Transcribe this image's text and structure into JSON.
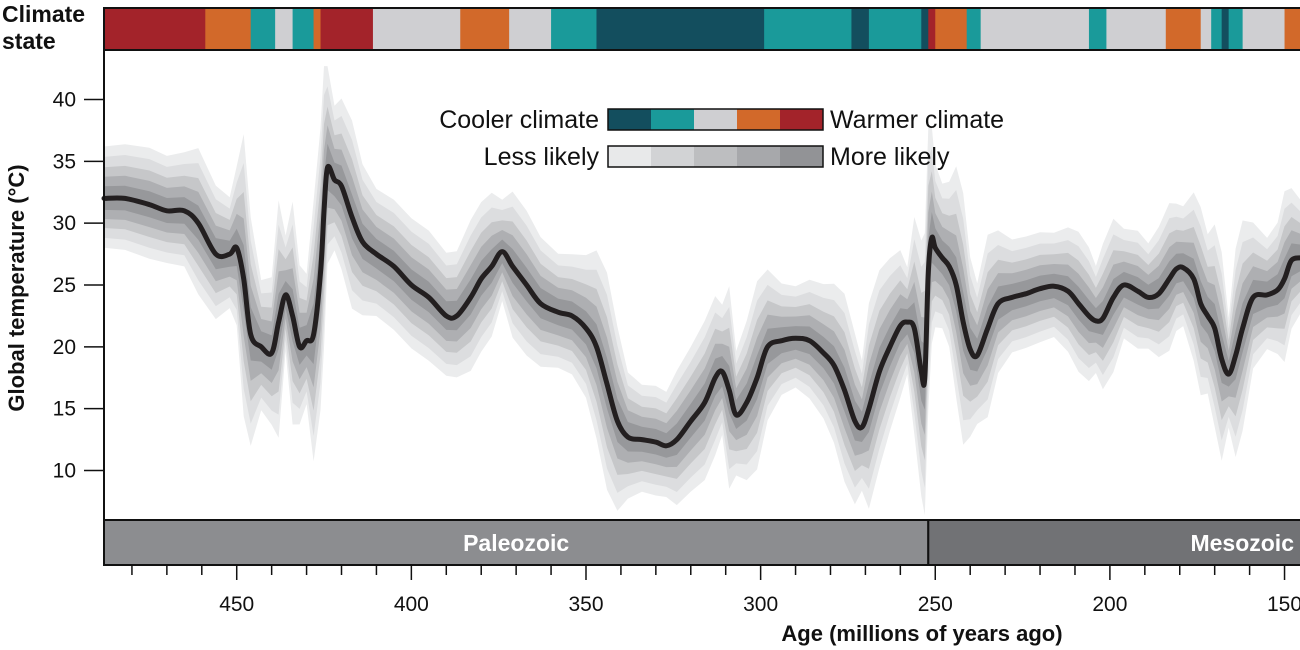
{
  "chart_data": {
    "type": "line",
    "x_unit": "Ma",
    "xlabel": "Age (millions of years ago)",
    "ylabel": "Global temperature (°C)",
    "xlim": [
      488,
      145
    ],
    "ylim": [
      6,
      44
    ],
    "x_ticks": [
      450,
      400,
      350,
      300,
      250,
      200,
      150
    ],
    "y_ticks": [
      10,
      15,
      20,
      25,
      30,
      35,
      40
    ],
    "grid": false,
    "climate_state_label_line1": "Climate",
    "climate_state_label_line2": "state",
    "colors": {
      "coolest": "#134E5E",
      "cool": "#1A9A9A",
      "moderate": "#CFCFD2",
      "warm": "#D2692A",
      "warmest": "#A3232A",
      "line": "#231F20",
      "era_paleozoic": "#8C8D90",
      "era_mesozoic": "#717275"
    },
    "legend": {
      "cooler_label": "Cooler climate",
      "warmer_label": "Warmer climate",
      "less_label": "Less likely",
      "more_label": "More likely",
      "climate_scale": [
        "#134E5E",
        "#1A9A9A",
        "#CFCFD2",
        "#D2692A",
        "#A3232A"
      ],
      "likelihood_scale": [
        "#E8E9EA",
        "#D2D3D5",
        "#BDBEC0",
        "#A7A8AB",
        "#929396"
      ]
    },
    "eras": [
      {
        "name": "Paleozoic",
        "start": 488,
        "end": 252
      },
      {
        "name": "Mesozoic",
        "start": 252,
        "end": 145
      }
    ],
    "climate_states": [
      {
        "start": 488,
        "end": 459,
        "state": "warmest"
      },
      {
        "start": 459,
        "end": 446,
        "state": "warm"
      },
      {
        "start": 446,
        "end": 439,
        "state": "cool"
      },
      {
        "start": 439,
        "end": 434,
        "state": "moderate"
      },
      {
        "start": 434,
        "end": 428,
        "state": "cool"
      },
      {
        "start": 428,
        "end": 426,
        "state": "warm"
      },
      {
        "start": 426,
        "end": 411,
        "state": "warmest"
      },
      {
        "start": 411,
        "end": 386,
        "state": "moderate"
      },
      {
        "start": 386,
        "end": 372,
        "state": "warm"
      },
      {
        "start": 372,
        "end": 360,
        "state": "moderate"
      },
      {
        "start": 360,
        "end": 347,
        "state": "cool"
      },
      {
        "start": 347,
        "end": 299,
        "state": "coolest"
      },
      {
        "start": 299,
        "end": 274,
        "state": "cool"
      },
      {
        "start": 274,
        "end": 269,
        "state": "coolest"
      },
      {
        "start": 269,
        "end": 254,
        "state": "cool"
      },
      {
        "start": 254,
        "end": 252,
        "state": "coolest"
      },
      {
        "start": 252,
        "end": 250,
        "state": "warmest"
      },
      {
        "start": 250,
        "end": 241,
        "state": "warm"
      },
      {
        "start": 241,
        "end": 237,
        "state": "cool"
      },
      {
        "start": 237,
        "end": 206,
        "state": "moderate"
      },
      {
        "start": 206,
        "end": 201,
        "state": "cool"
      },
      {
        "start": 201,
        "end": 184,
        "state": "moderate"
      },
      {
        "start": 184,
        "end": 174,
        "state": "warm"
      },
      {
        "start": 174,
        "end": 171,
        "state": "moderate"
      },
      {
        "start": 171,
        "end": 168,
        "state": "cool"
      },
      {
        "start": 168,
        "end": 166,
        "state": "coolest"
      },
      {
        "start": 166,
        "end": 162,
        "state": "cool"
      },
      {
        "start": 162,
        "end": 150,
        "state": "moderate"
      },
      {
        "start": 150,
        "end": 145,
        "state": "warm"
      }
    ],
    "series": [
      {
        "x": [
          488,
          482,
          475,
          470,
          465,
          461,
          456,
          452,
          450,
          448,
          446,
          443,
          440,
          438,
          436,
          434,
          432,
          430,
          428,
          426,
          425,
          424,
          422,
          420,
          417,
          414,
          410,
          405,
          400,
          395,
          390,
          387,
          383,
          380,
          377,
          374,
          371,
          367,
          363,
          358,
          354,
          350,
          347,
          344,
          341,
          338,
          334,
          330,
          327,
          324,
          320,
          316,
          313,
          311,
          309,
          307,
          304,
          301,
          298,
          294,
          290,
          286,
          282,
          279,
          276,
          273,
          271,
          269,
          266,
          263,
          260,
          258,
          256,
          254,
          253,
          252,
          251,
          250,
          248,
          246,
          244,
          242,
          240,
          238,
          235,
          232,
          228,
          224,
          220,
          216,
          212,
          209,
          206,
          204,
          202,
          199,
          196,
          192,
          189,
          186,
          183,
          181,
          179,
          176,
          174,
          172,
          170,
          168,
          166,
          164,
          162,
          159,
          155,
          152,
          150,
          148,
          145
        ],
        "y": [
          32,
          32,
          31.5,
          31,
          31,
          30,
          27.5,
          27.5,
          28,
          25.5,
          21,
          20,
          19.5,
          22,
          24.2,
          22.5,
          20,
          20.5,
          21,
          26,
          31,
          34.5,
          33.5,
          33,
          30.5,
          28.5,
          27.5,
          26.5,
          25,
          24,
          22.5,
          22.5,
          24,
          25.5,
          26.5,
          27.7,
          26.5,
          25,
          23.5,
          22.8,
          22.5,
          21.5,
          20,
          17,
          14,
          12.7,
          12.5,
          12.3,
          12,
          12.5,
          14,
          15.5,
          17.5,
          18,
          16.5,
          14.5,
          15.5,
          17.5,
          20,
          20.5,
          20.7,
          20.5,
          19.5,
          18.5,
          16.5,
          14,
          13.5,
          15,
          18,
          20,
          21.7,
          22,
          21.5,
          18,
          17.5,
          26,
          28.8,
          28,
          27.2,
          26.5,
          25,
          22,
          19.8,
          19.3,
          21.5,
          23.5,
          24,
          24.3,
          24.7,
          24.9,
          24.5,
          23.5,
          22.5,
          22.1,
          22.3,
          24,
          25,
          24.5,
          24,
          24.3,
          25.5,
          26.3,
          26.4,
          25.5,
          23.5,
          22.5,
          21.5,
          19,
          17.8,
          19.3,
          21.5,
          24,
          24.2,
          24.6,
          25.5,
          27,
          27.2
        ]
      }
    ]
  }
}
